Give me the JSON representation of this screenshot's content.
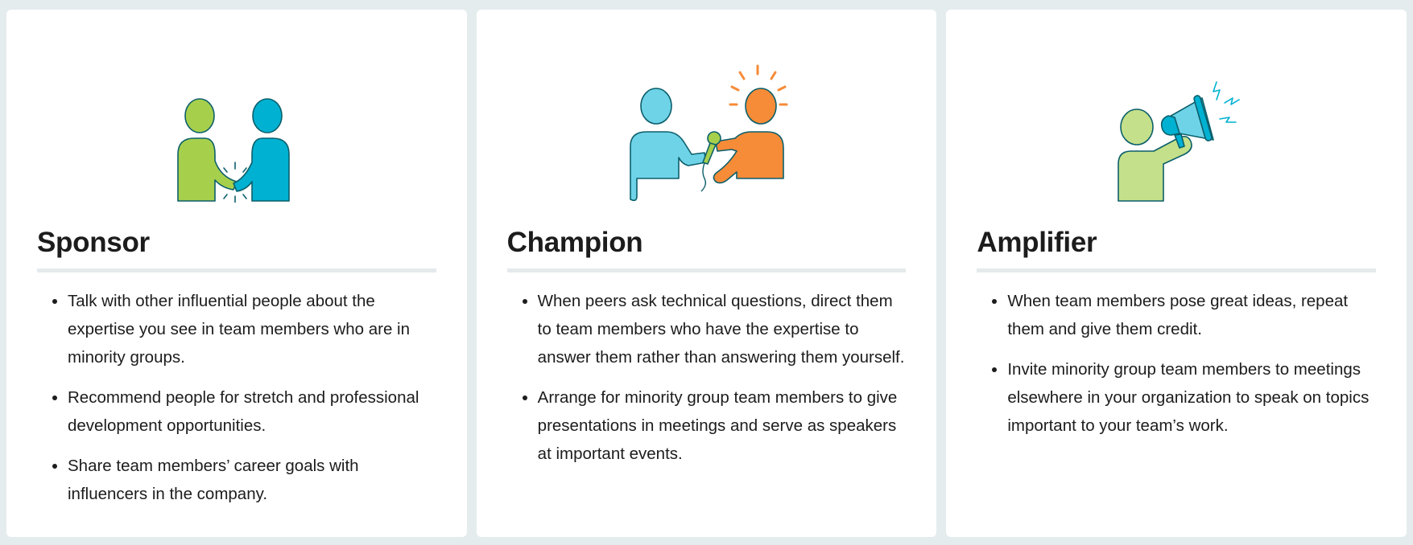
{
  "cards": [
    {
      "title": "Sponsor",
      "icon": "handshake-illustration-icon",
      "points": [
        "Talk with other influential people about the expertise you see in team members who are in minority groups.",
        "Recommend people for stretch and professional development opportunities.",
        "Share team members’ career goals with influencers in the company."
      ]
    },
    {
      "title": "Champion",
      "icon": "microphone-interview-illustration-icon",
      "points": [
        "When peers ask technical questions, direct them to team members who have the expertise to answer them rather than answering them yourself.",
        "Arrange for minority group team members to give presentations in meetings and serve as speakers at important events."
      ]
    },
    {
      "title": "Amplifier",
      "icon": "megaphone-illustration-icon",
      "points": [
        "When team members pose great ideas, repeat them and give them credit.",
        "Invite minority group team members to meetings elsewhere in your organization to speak on topics important to your team’s work."
      ]
    }
  ],
  "colors": {
    "page_bg": "#e5ecee",
    "card_bg": "#ffffff",
    "outline": "#0b5f6b",
    "lime_green": "#a6cf4c",
    "pale_green": "#c4e08a",
    "teal_blue": "#00b1d2",
    "sky_blue": "#6fd3e8",
    "orange": "#f68b38"
  }
}
